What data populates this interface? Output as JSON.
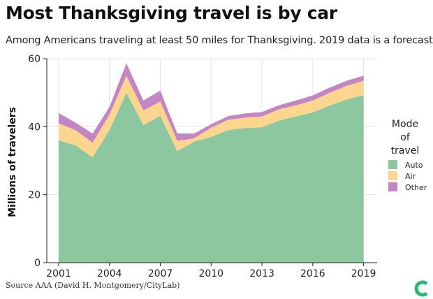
{
  "header": {
    "title": "Most Thanksgiving travel is by car",
    "subtitle": "Among Americans traveling at least 50 miles for Thanksgiving. 2019 data is a forecast."
  },
  "footer": {
    "source": "Source AAA (David H. Montgomery/CityLab)"
  },
  "logo": {
    "icon": "citylab-logo-icon",
    "color": "#2bb673"
  },
  "chart_data": {
    "type": "area",
    "stacked": true,
    "title": "Most Thanksgiving travel is by car",
    "subtitle": "Among Americans traveling at least 50 miles for Thanksgiving. 2019 data is a forecast.",
    "ylabel": "Millions of travelers",
    "xlabel": "",
    "ylim": [
      0,
      60
    ],
    "xlim": [
      2000.3,
      2019.8
    ],
    "xticks": [
      2001,
      2004,
      2007,
      2010,
      2013,
      2016,
      2019
    ],
    "yticks": [
      0,
      20,
      40,
      60
    ],
    "grid": true,
    "legend": {
      "title_lines": [
        "Mode",
        "of",
        "travel"
      ],
      "placement": "right"
    },
    "x": [
      2001,
      2002,
      2003,
      2004,
      2005,
      2006,
      2007,
      2008,
      2009,
      2010,
      2011,
      2012,
      2013,
      2014,
      2015,
      2016,
      2017,
      2018,
      2019
    ],
    "series": [
      {
        "name": "Auto",
        "color": "#8cc79f",
        "values": [
          36.0,
          34.5,
          31.0,
          39.0,
          50.0,
          40.5,
          43.2,
          32.8,
          35.6,
          37.0,
          39.0,
          39.6,
          39.8,
          41.8,
          43.0,
          44.2,
          46.2,
          48.0,
          49.3
        ]
      },
      {
        "name": "Air",
        "color": "#fcd58f",
        "values": [
          5.0,
          4.5,
          4.3,
          4.5,
          5.0,
          4.3,
          4.2,
          3.0,
          1.0,
          2.7,
          3.0,
          3.1,
          3.2,
          3.3,
          3.3,
          3.5,
          3.8,
          4.0,
          4.2
        ]
      },
      {
        "name": "Other",
        "color": "#c585c3",
        "values": [
          3.0,
          2.2,
          2.7,
          2.3,
          3.6,
          2.9,
          3.2,
          2.2,
          1.4,
          1.0,
          1.1,
          1.2,
          1.3,
          1.2,
          1.4,
          1.5,
          1.5,
          1.5,
          1.5
        ]
      }
    ]
  }
}
